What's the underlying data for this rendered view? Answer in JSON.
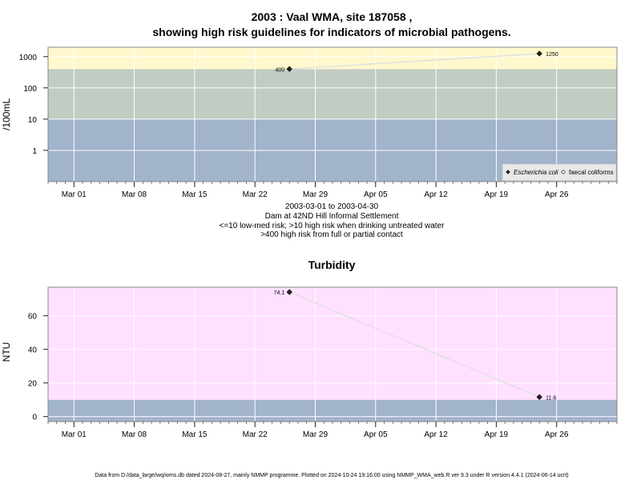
{
  "chart_data": [
    {
      "type": "line",
      "title_line1": "2003 : Vaal WMA, site 187058 ,",
      "title_line2": "showing high risk guidelines for indicators of microbial pathogens.",
      "subtitle_lines": [
        "2003-03-01 to 2003-04-30",
        "Dam at 42ND Hill Informal Settlement",
        "<=10 low-med risk; >10 high risk when drinking untreated water",
        ">400 high risk from full or partial contact"
      ],
      "xlabel": "",
      "ylabel": "/100mL",
      "y_scale": "log",
      "ylim": [
        0.1,
        2000
      ],
      "y_ticks": [
        1,
        10,
        100,
        1000
      ],
      "y_tick_labels": [
        "1",
        "10",
        "100",
        "1000"
      ],
      "xlim": [
        "2003-02-26",
        "2003-05-03"
      ],
      "x_ticks": [
        "2003-03-01",
        "2003-03-08",
        "2003-03-15",
        "2003-03-22",
        "2003-03-29",
        "2003-04-05",
        "2003-04-12",
        "2003-04-19",
        "2003-04-26"
      ],
      "x_tick_labels": [
        "Mar 01",
        "Mar 08",
        "Mar 15",
        "Mar 22",
        "Mar 29",
        "Apr 05",
        "Apr 12",
        "Apr 19",
        "Apr 26"
      ],
      "grid": true,
      "bands": [
        {
          "from": 0.1,
          "to": 10,
          "color": "#a2b3cc"
        },
        {
          "from": 10,
          "to": 400,
          "color": "#c2ccc2"
        },
        {
          "from": 400,
          "to": 2000,
          "color": "#fff8cc"
        }
      ],
      "series": [
        {
          "name": "Escherichia coli",
          "marker": "filled-diamond",
          "color": "#222222",
          "x": [
            "2003-03-26",
            "2003-04-24"
          ],
          "y": [
            400,
            1250
          ],
          "labels": [
            "400",
            "1250"
          ]
        },
        {
          "name": "faecal coliforms",
          "marker": "open-diamond",
          "color": "#333333",
          "x": [],
          "y": [],
          "labels": []
        }
      ],
      "legend": "bottom-right"
    },
    {
      "type": "line",
      "title": "Turbidity",
      "xlabel": "",
      "ylabel": "NTU",
      "y_scale": "linear",
      "ylim": [
        -3,
        77
      ],
      "y_ticks": [
        0,
        20,
        40,
        60
      ],
      "y_tick_labels": [
        "0",
        "20",
        "40",
        "60"
      ],
      "xlim": [
        "2003-02-26",
        "2003-05-03"
      ],
      "x_ticks": [
        "2003-03-01",
        "2003-03-08",
        "2003-03-15",
        "2003-03-22",
        "2003-03-29",
        "2003-04-05",
        "2003-04-12",
        "2003-04-19",
        "2003-04-26"
      ],
      "x_tick_labels": [
        "Mar 01",
        "Mar 08",
        "Mar 15",
        "Mar 22",
        "Mar 29",
        "Apr 05",
        "Apr 12",
        "Apr 19",
        "Apr 26"
      ],
      "grid": true,
      "bands": [
        {
          "from": -3,
          "to": 10,
          "color": "#a2b3cc"
        },
        {
          "from": 10,
          "to": 77,
          "color": "#ffe0ff"
        }
      ],
      "series": [
        {
          "marker": "filled-diamond",
          "color": "#222222",
          "x": [
            "2003-03-26",
            "2003-04-24"
          ],
          "y": [
            74.1,
            11.6
          ],
          "labels": [
            "74.1",
            "11.6"
          ]
        }
      ]
    }
  ],
  "footer": "Data from D:/data_large/wq/wms.db dated 2024-08-27, mainly NMMP programme. Plotted on 2024-10-24 19:16:00 using NMMP_WMA_web.R ver 9.3 under R version 4.4.1 (2024-06-14 ucrt)",
  "colors": {
    "line": "#e0e0e0",
    "grid": "#ffffff",
    "frame": "#888888",
    "legend_bg": "#e8e8e8"
  }
}
